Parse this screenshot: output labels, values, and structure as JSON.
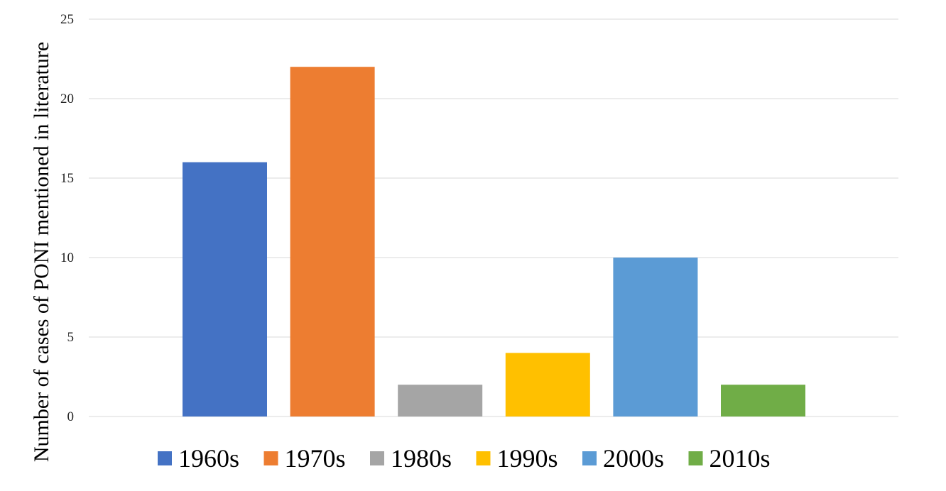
{
  "chart_data": {
    "type": "bar",
    "title": "",
    "xlabel": "",
    "ylabel": "Number of cases of PONI mentioned in literature",
    "ylim": [
      0,
      25
    ],
    "yticks": [
      0,
      5,
      10,
      15,
      20,
      25
    ],
    "grid": true,
    "legend_position": "bottom",
    "categories": [
      "1960s",
      "1970s",
      "1980s",
      "1990s",
      "2000s",
      "2010s"
    ],
    "values": [
      16,
      22,
      2,
      4,
      10,
      2
    ],
    "colors": [
      "#4472C4",
      "#ED7D31",
      "#A5A5A5",
      "#FFC000",
      "#5B9BD5",
      "#70AD47"
    ]
  }
}
